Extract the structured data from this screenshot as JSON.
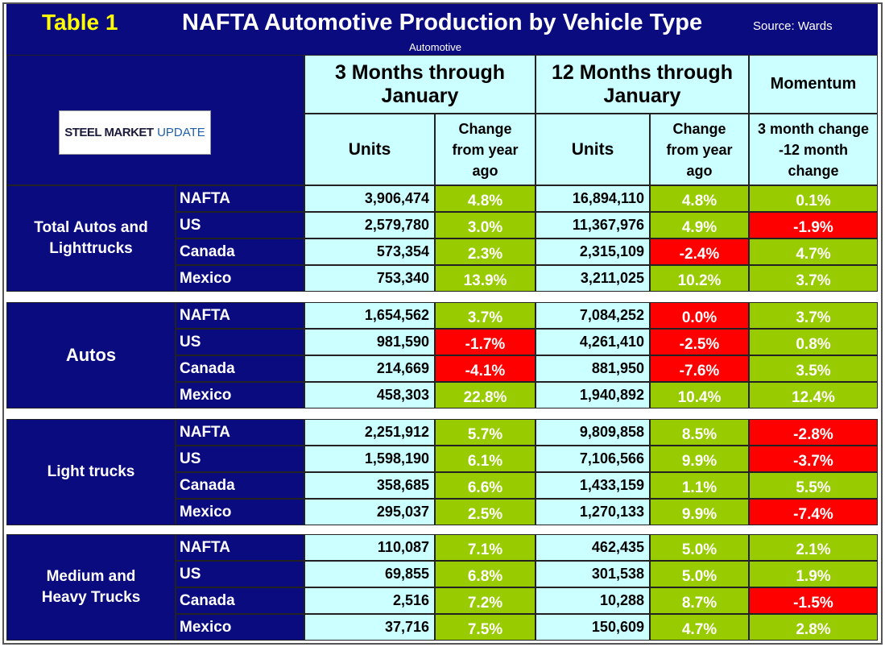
{
  "header": {
    "label": "Table 1",
    "title": "NAFTA Automotive Production by Vehicle Type",
    "source": "Source: Wards",
    "subtitle": "Automotive"
  },
  "logo": {
    "brand": "STEEL MARKET",
    "word": "UPDATE"
  },
  "columns": {
    "three_months": "3 Months through January",
    "twelve_months": "12 Months through January",
    "momentum": "Momentum",
    "units": "Units",
    "change": "Change from year ago",
    "momentum_detail": "3 month change -12 month change"
  },
  "sections": [
    {
      "label": "Total Autos and Lighttrucks",
      "rows": [
        {
          "region": "NAFTA",
          "values": [
            "3,906,474",
            "4.8%",
            "16,894,110",
            "4.8%",
            "0.1%"
          ]
        },
        {
          "region": "US",
          "values": [
            "2,579,780",
            "3.0%",
            "11,367,976",
            "4.9%",
            "-1.9%"
          ]
        },
        {
          "region": "Canada",
          "values": [
            "573,354",
            "2.3%",
            "2,315,109",
            "-2.4%",
            "4.7%"
          ]
        },
        {
          "region": "Mexico",
          "values": [
            "753,340",
            "13.9%",
            "3,211,025",
            "10.2%",
            "3.7%"
          ]
        }
      ]
    },
    {
      "label": "Autos",
      "rows": [
        {
          "region": "NAFTA",
          "values": [
            "1,654,562",
            "3.7%",
            "7,084,252",
            "0.0%",
            "3.7%"
          ]
        },
        {
          "region": "US",
          "values": [
            "981,590",
            "-1.7%",
            "4,261,410",
            "-2.5%",
            "0.8%"
          ]
        },
        {
          "region": "Canada",
          "values": [
            "214,669",
            "-4.1%",
            "881,950",
            "-7.6%",
            "3.5%"
          ]
        },
        {
          "region": "Mexico",
          "values": [
            "458,303",
            "22.8%",
            "1,940,892",
            "10.4%",
            "12.4%"
          ]
        }
      ]
    },
    {
      "label": "Light trucks",
      "rows": [
        {
          "region": "NAFTA",
          "values": [
            "2,251,912",
            "5.7%",
            "9,809,858",
            "8.5%",
            "-2.8%"
          ]
        },
        {
          "region": "US",
          "values": [
            "1,598,190",
            "6.1%",
            "7,106,566",
            "9.9%",
            "-3.7%"
          ]
        },
        {
          "region": "Canada",
          "values": [
            "358,685",
            "6.6%",
            "1,433,159",
            "1.1%",
            "5.5%"
          ]
        },
        {
          "region": "Mexico",
          "values": [
            "295,037",
            "2.5%",
            "1,270,133",
            "9.9%",
            "-7.4%"
          ]
        }
      ]
    },
    {
      "label": "Medium and Heavy Trucks",
      "rows": [
        {
          "region": "NAFTA",
          "values": [
            "110,087",
            "7.1%",
            "462,435",
            "5.0%",
            "2.1%"
          ]
        },
        {
          "region": "US",
          "values": [
            "69,855",
            "6.8%",
            "301,538",
            "5.0%",
            "1.9%"
          ]
        },
        {
          "region": "Canada",
          "values": [
            "2,516",
            "7.2%",
            "10,288",
            "8.7%",
            "-1.5%"
          ]
        },
        {
          "region": "Mexico",
          "values": [
            "37,716",
            "7.5%",
            "150,609",
            "4.7%",
            "2.8%"
          ]
        }
      ]
    }
  ]
}
